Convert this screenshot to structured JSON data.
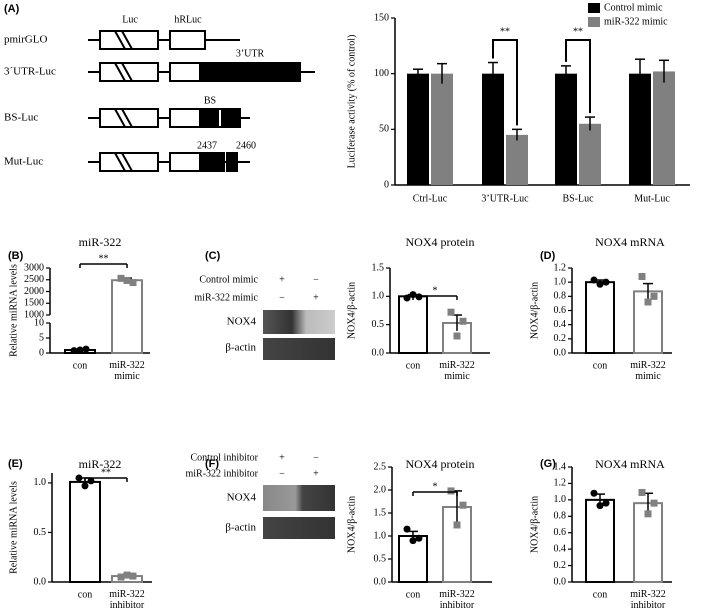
{
  "panels": [
    "(A)",
    "(B)",
    "(C)",
    "(D)",
    "(E)",
    "(F)",
    "(G)"
  ],
  "constructs": {
    "names": [
      "pmirGLO",
      "3´UTR-Luc",
      "BS-Luc",
      "Mut-Luc"
    ],
    "labels": [
      "Luc",
      "hRLuc",
      "3’UTR",
      "BS",
      "2437",
      "2460"
    ]
  },
  "blots": [
    {
      "conditions": [
        {
          "label": "Control mimic",
          "signs": [
            "+",
            "−"
          ]
        },
        {
          "label": "miR-322 mimic",
          "signs": [
            "−",
            "+"
          ]
        }
      ],
      "bands": [
        "NOX4",
        "β-actin"
      ]
    },
    {
      "conditions": [
        {
          "label": "Control inhibitor",
          "signs": [
            "+",
            "−"
          ]
        },
        {
          "label": "miR-322 inhibitor",
          "signs": [
            "−",
            "+"
          ]
        }
      ],
      "bands": [
        "NOX4",
        "β-actin"
      ]
    }
  ],
  "chart_data": [
    {
      "type": "bar",
      "ylabel": "Luciferase activity (% of control)",
      "categories": [
        "Ctrl-Luc",
        "3’UTR-Luc",
        "BS-Luc",
        "Mut-Luc"
      ],
      "series": [
        {
          "name": "Control mimic",
          "color": "#000000",
          "values": [
            100,
            100,
            100,
            100
          ],
          "errors": [
            4,
            10,
            7,
            13
          ]
        },
        {
          "name": "miR-322 mimic",
          "color": "#808080",
          "values": [
            100,
            45,
            55,
            102
          ],
          "errors": [
            9,
            5,
            6,
            10
          ]
        }
      ],
      "ylim": [
        0,
        150
      ],
      "yticks": [
        0,
        50,
        100,
        150
      ],
      "annotations": [
        "**",
        "**"
      ]
    },
    {
      "type": "bar",
      "title": "miR-322",
      "ylabel": "Relative miRNA levels",
      "categories": [
        "con",
        "miR-322\nmimic"
      ],
      "values": [
        1,
        2480
      ],
      "errors": [
        0.2,
        90
      ],
      "points": [
        [
          0.8,
          1.0,
          1.3
        ],
        [
          2560,
          2470,
          2380
        ]
      ],
      "colors": [
        "#000000",
        "#808080"
      ],
      "ylim": [
        0,
        3000
      ],
      "ybreak": [
        10,
        1000
      ],
      "yticks": [
        0,
        5,
        10,
        1000,
        1500,
        2000,
        2500,
        3000
      ],
      "annotations": [
        "**"
      ]
    },
    {
      "type": "bar",
      "title": "NOX4 protein",
      "ylabel": "NOX4/β-actin",
      "categories": [
        "con",
        "miR-322\nmimic"
      ],
      "values": [
        1.0,
        0.53
      ],
      "errors": [
        0.03,
        0.14
      ],
      "points": [
        [
          0.97,
          1.03,
          0.99
        ],
        [
          0.72,
          0.3,
          0.56
        ]
      ],
      "colors": [
        "#000000",
        "#808080"
      ],
      "ylim": [
        0,
        1.5
      ],
      "yticks": [
        {
          "value": 0,
          "label": "0.0"
        },
        {
          "value": 0.5,
          "label": "0.5"
        },
        {
          "value": 1,
          "label": "1.0"
        },
        {
          "value": 1.5,
          "label": "1.5"
        }
      ],
      "annotations": [
        "*"
      ]
    },
    {
      "type": "bar",
      "title": "NOX4 mRNA",
      "ylabel": "NOX4/β-actin",
      "categories": [
        "con",
        "miR-322\nmimic"
      ],
      "values": [
        1.0,
        0.87
      ],
      "errors": [
        0.03,
        0.11
      ],
      "points": [
        [
          1.03,
          0.97,
          1.0
        ],
        [
          1.08,
          0.72,
          0.8
        ]
      ],
      "colors": [
        "#000000",
        "#808080"
      ],
      "ylim": [
        0,
        1.2
      ],
      "yticks": [
        {
          "value": 0,
          "label": "0.0"
        },
        {
          "value": 0.2,
          "label": "0.2"
        },
        {
          "value": 0.4,
          "label": "0.4"
        },
        {
          "value": 0.6,
          "label": "0.6"
        },
        {
          "value": 0.8,
          "label": "0.8"
        },
        {
          "value": 1,
          "label": "1.0"
        },
        {
          "value": 1.2,
          "label": "1.2"
        }
      ]
    },
    {
      "type": "bar",
      "title": "miR-322",
      "ylabel": "Relative miRNA levels",
      "categories": [
        "con",
        "miR-322\ninhibitor"
      ],
      "values": [
        1.01,
        0.06
      ],
      "errors": [
        0.04,
        0.01
      ],
      "points": [
        [
          1.05,
          0.97,
          1.02
        ],
        [
          0.05,
          0.07,
          0.06
        ]
      ],
      "colors": [
        "#000000",
        "#808080"
      ],
      "ylim": [
        0,
        1.1
      ],
      "yticks": [
        {
          "value": 0,
          "label": "0.0"
        },
        {
          "value": 0.5,
          "label": "0.5"
        },
        {
          "value": 1,
          "label": "1.0"
        }
      ],
      "annotations": [
        "**"
      ]
    },
    {
      "type": "bar",
      "title": "NOX4 protein",
      "ylabel": "NOX4/β-actin",
      "categories": [
        "con",
        "miR-322\ninhibitor"
      ],
      "values": [
        1.0,
        1.63
      ],
      "errors": [
        0.1,
        0.35
      ],
      "points": [
        [
          1.15,
          0.9,
          0.95
        ],
        [
          1.98,
          1.24,
          1.67
        ]
      ],
      "colors": [
        "#000000",
        "#808080"
      ],
      "ylim": [
        0,
        2.5
      ],
      "yticks": [
        {
          "value": 0,
          "label": "0.0"
        },
        {
          "value": 0.5,
          "label": "0.5"
        },
        {
          "value": 1,
          "label": "1.0"
        },
        {
          "value": 1.5,
          "label": "1.5"
        },
        {
          "value": 2,
          "label": "2.0"
        },
        {
          "value": 2.5,
          "label": "2.5"
        }
      ],
      "annotations": [
        "*"
      ]
    },
    {
      "type": "bar",
      "title": "NOX4 mRNA",
      "ylabel": "NOX4/β-actin",
      "categories": [
        "con",
        "miR-322\ninhibitor"
      ],
      "values": [
        1.0,
        0.96
      ],
      "errors": [
        0.07,
        0.12
      ],
      "points": [
        [
          1.08,
          0.93,
          0.96
        ],
        [
          1.09,
          0.83,
          0.96
        ]
      ],
      "colors": [
        "#000000",
        "#808080"
      ],
      "ylim": [
        0,
        1.4
      ],
      "yticks": [
        {
          "value": 0,
          "label": "0.0"
        },
        {
          "value": 0.2,
          "label": "0.2"
        },
        {
          "value": 0.4,
          "label": "0.4"
        },
        {
          "value": 0.6,
          "label": "0.6"
        },
        {
          "value": 0.8,
          "label": "0.8"
        },
        {
          "value": 1,
          "label": "1.0"
        },
        {
          "value": 1.2,
          "label": "1.2"
        },
        {
          "value": 1.4,
          "label": "1.4"
        }
      ]
    }
  ]
}
